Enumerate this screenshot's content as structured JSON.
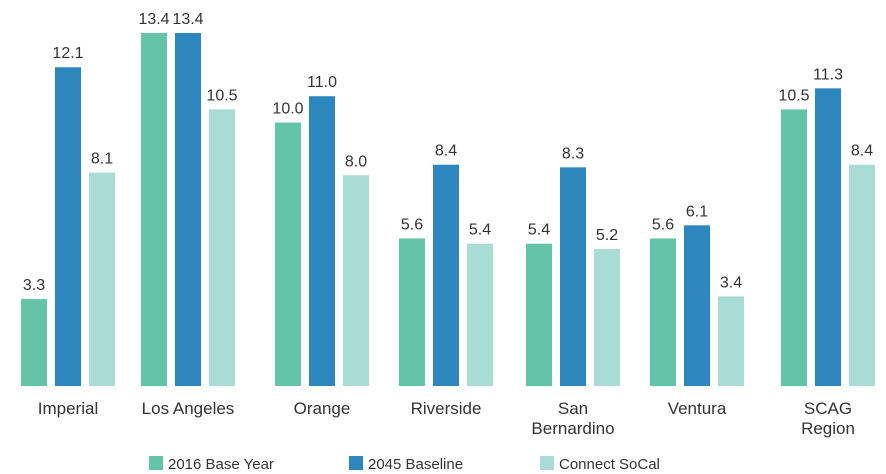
{
  "chart_data": {
    "type": "bar",
    "title": "",
    "xlabel": "",
    "ylabel": "",
    "ylim": [
      0,
      13.4
    ],
    "grid": false,
    "legend_position": "bottom",
    "categories": [
      [
        "Imperial"
      ],
      [
        "Los Angeles"
      ],
      [
        "Orange"
      ],
      [
        "Riverside"
      ],
      [
        "San",
        "Bernardino"
      ],
      [
        "Ventura"
      ],
      [
        "SCAG",
        "Region"
      ]
    ],
    "series": [
      {
        "name": "2016 Base Year",
        "color": "#63c4a8",
        "values": [
          3.3,
          13.4,
          10.0,
          5.6,
          5.4,
          5.6,
          10.5
        ]
      },
      {
        "name": "2045 Baseline",
        "color": "#2e86bf",
        "values": [
          12.1,
          13.4,
          11.0,
          8.4,
          8.3,
          6.1,
          11.3
        ]
      },
      {
        "name": "Connect SoCal",
        "color": "#a8dcd4",
        "values": [
          8.1,
          10.5,
          8.0,
          5.4,
          5.2,
          3.4,
          8.4
        ]
      }
    ]
  }
}
